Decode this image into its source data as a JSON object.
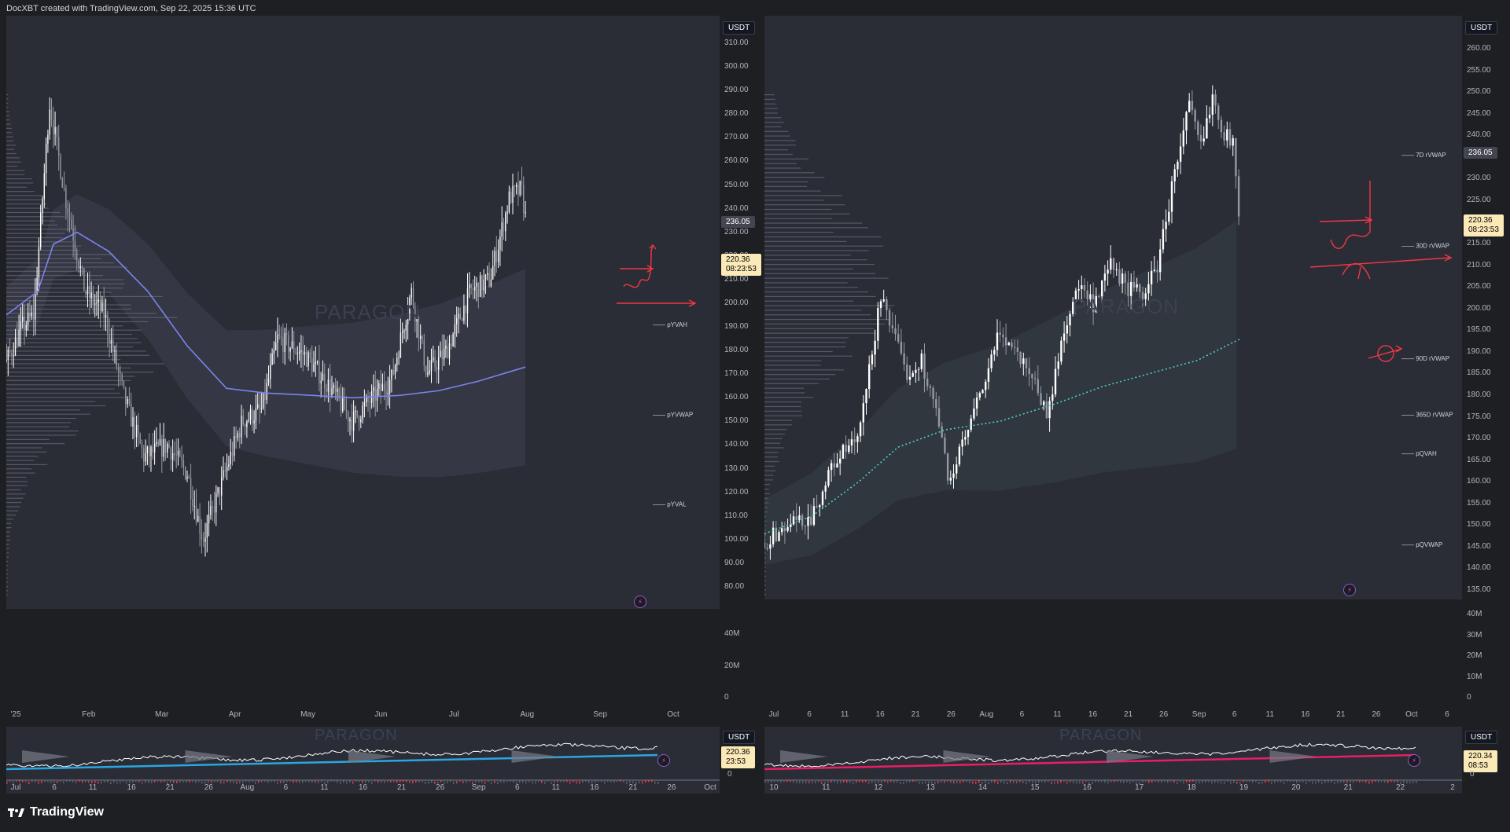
{
  "credit": "DocXBT created with TradingView.com, Sep 22, 2025 15:36 UTC",
  "footer_brand": "TradingView",
  "colors": {
    "up": "#ffffff",
    "down": "#9598a1",
    "vol_gray": "#5d606b",
    "vol_red": "#f23645",
    "vol_teal": "#5fbfae",
    "vwap_blue": "#7b83eb",
    "vwap_teal": "#4fd1b8",
    "annot_red": "#f23645",
    "mini_blue": "#2aa6e0",
    "mini_pink": "#e91e63"
  },
  "chart_data": [
    {
      "id": "left-main",
      "type": "candlestick",
      "currency": "USDT",
      "watermark": "PARAGON",
      "ylim": [
        75,
        315
      ],
      "yticks": [
        "310.00",
        "300.00",
        "290.00",
        "280.00",
        "270.00",
        "260.00",
        "250.00",
        "240.00",
        "230.00",
        "220.00",
        "210.00",
        "200.00",
        "190.00",
        "180.00",
        "170.00",
        "160.00",
        "150.00",
        "140.00",
        "130.00",
        "120.00",
        "110.00",
        "100.00",
        "90.00",
        "80.00"
      ],
      "xticks": [
        "'25",
        "Feb",
        "Mar",
        "Apr",
        "May",
        "Jun",
        "Jul",
        "Aug",
        "Sep",
        "Oct"
      ],
      "last_price": "236.05",
      "current_price": "220.36",
      "countdown": "08:23:53",
      "path": [
        [
          0,
          175
        ],
        [
          20,
          190
        ],
        [
          35,
          195
        ],
        [
          55,
          285
        ],
        [
          75,
          245
        ],
        [
          100,
          205
        ],
        [
          125,
          195
        ],
        [
          150,
          160
        ],
        [
          175,
          135
        ],
        [
          205,
          140
        ],
        [
          230,
          128
        ],
        [
          250,
          100
        ],
        [
          270,
          120
        ],
        [
          300,
          150
        ],
        [
          325,
          155
        ],
        [
          345,
          185
        ],
        [
          380,
          178
        ],
        [
          410,
          165
        ],
        [
          440,
          150
        ],
        [
          460,
          158
        ],
        [
          490,
          168
        ],
        [
          515,
          205
        ],
        [
          535,
          170
        ],
        [
          560,
          180
        ],
        [
          590,
          205
        ],
        [
          615,
          210
        ],
        [
          640,
          245
        ],
        [
          655,
          248
        ],
        [
          662,
          232
        ]
      ],
      "vwap": [
        [
          0,
          195
        ],
        [
          20,
          200
        ],
        [
          40,
          205
        ],
        [
          60,
          225
        ],
        [
          90,
          230
        ],
        [
          130,
          222
        ],
        [
          180,
          205
        ],
        [
          230,
          182
        ],
        [
          280,
          164
        ],
        [
          330,
          162
        ],
        [
          390,
          161
        ],
        [
          440,
          160
        ],
        [
          500,
          161
        ],
        [
          550,
          163
        ],
        [
          600,
          167
        ],
        [
          660,
          173
        ]
      ],
      "levels": [
        {
          "label": "pYVAH",
          "price": 190
        },
        {
          "label": "pYVWAP",
          "price": 152
        },
        {
          "label": "pYVAL",
          "price": 114
        }
      ],
      "volume": {
        "ylim": [
          0,
          55
        ],
        "yticks": [
          "40M",
          "20M",
          "0"
        ]
      }
    },
    {
      "id": "right-main",
      "type": "candlestick",
      "currency": "USDT",
      "watermark": "PARAGON",
      "ylim": [
        133,
        264
      ],
      "yticks": [
        "260.00",
        "255.00",
        "250.00",
        "245.00",
        "240.00",
        "235.00",
        "230.00",
        "225.00",
        "220.00",
        "215.00",
        "210.00",
        "205.00",
        "200.00",
        "195.00",
        "190.00",
        "185.00",
        "180.00",
        "175.00",
        "170.00",
        "165.00",
        "160.00",
        "155.00",
        "150.00",
        "145.00",
        "140.00",
        "135.00"
      ],
      "xticks": [
        "Jul",
        "6",
        "11",
        "16",
        "21",
        "26",
        "Aug",
        "6",
        "11",
        "16",
        "21",
        "26",
        "Sep",
        "6",
        "11",
        "16",
        "21",
        "26",
        "Oct",
        "6"
      ],
      "last_price": "236.05",
      "current_price": "220.36",
      "countdown": "08:23:53",
      "path": [
        [
          0,
          146
        ],
        [
          30,
          150
        ],
        [
          60,
          152
        ],
        [
          90,
          165
        ],
        [
          120,
          170
        ],
        [
          150,
          205
        ],
        [
          160,
          196
        ],
        [
          180,
          185
        ],
        [
          200,
          188
        ],
        [
          220,
          175
        ],
        [
          235,
          160
        ],
        [
          255,
          170
        ],
        [
          275,
          180
        ],
        [
          300,
          195
        ],
        [
          320,
          190
        ],
        [
          340,
          185
        ],
        [
          360,
          175
        ],
        [
          380,
          195
        ],
        [
          400,
          205
        ],
        [
          420,
          200
        ],
        [
          440,
          210
        ],
        [
          460,
          205
        ],
        [
          480,
          203
        ],
        [
          500,
          210
        ],
        [
          520,
          230
        ],
        [
          540,
          247
        ],
        [
          555,
          237
        ],
        [
          570,
          250
        ],
        [
          585,
          240
        ],
        [
          597,
          238
        ],
        [
          605,
          218
        ]
      ],
      "vwap": [
        [
          0,
          148
        ],
        [
          60,
          152
        ],
        [
          120,
          160
        ],
        [
          170,
          168
        ],
        [
          230,
          172
        ],
        [
          300,
          174
        ],
        [
          370,
          178
        ],
        [
          430,
          182
        ],
        [
          490,
          185
        ],
        [
          550,
          188
        ],
        [
          605,
          193
        ]
      ],
      "levels": [
        {
          "label": "7D rVWAP",
          "price": 235
        },
        {
          "label": "30D rVWAP",
          "price": 214
        },
        {
          "label": "90D rVWAP",
          "price": 188
        },
        {
          "label": "365D rVWAP",
          "price": 175
        },
        {
          "label": "pQVAH",
          "price": 166
        },
        {
          "label": "pQVWAP",
          "price": 145
        }
      ],
      "volume": {
        "ylim": [
          0,
          42
        ],
        "yticks": [
          "40M",
          "30M",
          "20M",
          "10M",
          "0"
        ]
      }
    },
    {
      "id": "left-mini",
      "type": "line",
      "currency": "USDT",
      "xticks": [
        "Jul",
        "6",
        "11",
        "16",
        "21",
        "26",
        "Aug",
        "6",
        "11",
        "16",
        "21",
        "26",
        "Sep",
        "6",
        "11",
        "16",
        "21",
        "26",
        "Oct"
      ],
      "current_price": "220.36",
      "countdown": "23:53",
      "volume_zero": "0"
    },
    {
      "id": "right-mini",
      "type": "line",
      "currency": "USDT",
      "xticks": [
        "10",
        "11",
        "12",
        "13",
        "14",
        "15",
        "16",
        "17",
        "18",
        "19",
        "20",
        "21",
        "22",
        "2"
      ],
      "current_price": "220.34",
      "countdown": "08:53",
      "volume_zero": "0"
    }
  ]
}
